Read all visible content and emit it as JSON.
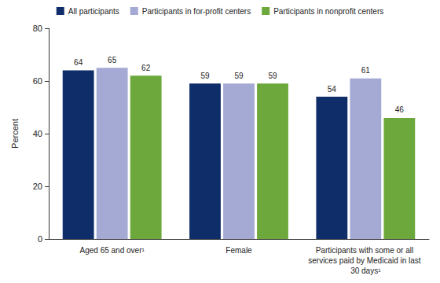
{
  "chart_data": {
    "type": "bar",
    "y_label": "Percent",
    "categories": [
      "Aged 65 and over¹",
      "Female",
      "Participants with some or all services paid by Medicaid in last 30 days¹"
    ],
    "series": [
      {
        "name": "All participants",
        "color": "#0f2d69",
        "values": [
          64,
          59,
          54
        ]
      },
      {
        "name": "Participants in for-profit centers",
        "color": "#a4aad4",
        "values": [
          65,
          59,
          61
        ]
      },
      {
        "name": "Participants in nonprofit centers",
        "color": "#6ca83c",
        "values": [
          62,
          59,
          46
        ]
      }
    ],
    "ylim": [
      0,
      80
    ],
    "yticks": [
      0,
      20,
      40,
      60,
      80
    ],
    "grid": false,
    "legend": "top",
    "data_labels": true
  }
}
